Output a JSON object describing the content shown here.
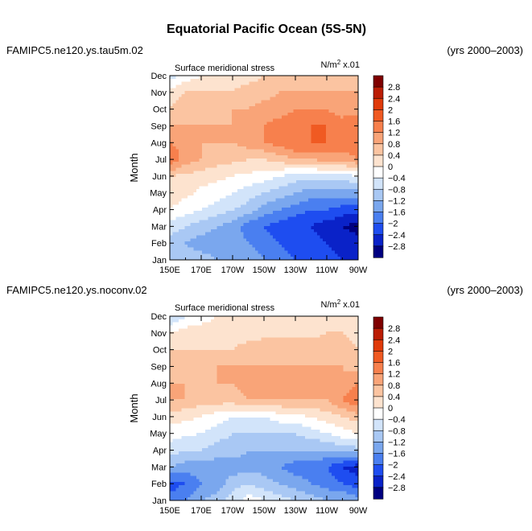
{
  "figure_title": "Equatorial Pacific Ocean (5S-5N)",
  "panels": [
    {
      "case_name": "FAMIPC5.ne120.ys.tau5m.02",
      "years": "(yrs 2000–2003)",
      "left_label": "Surface meridional stress",
      "units_prefix": "N/m",
      "units_sup": "2",
      "units_suffix": " x.01"
    },
    {
      "case_name": "FAMIPC5.ne120.ys.noconv.02",
      "years": "(yrs 2000–2003)",
      "left_label": "Surface meridional stress",
      "units_prefix": "N/m",
      "units_sup": "2",
      "units_suffix": " x.01"
    }
  ],
  "colorbar": {
    "labels": [
      "2.8",
      "2.4",
      "2",
      "1.6",
      "1.2",
      "0.8",
      "0.4",
      "0",
      "−0.4",
      "−0.8",
      "−1.2",
      "−1.6",
      "−2",
      "−2.4",
      "−2.8"
    ],
    "colors": [
      "#7f0000",
      "#bb1d05",
      "#e03a0a",
      "#f05a22",
      "#f7804d",
      "#f9a478",
      "#fbc4a1",
      "#fde3cf",
      "#ffffff",
      "#d2e4fa",
      "#a9c8f4",
      "#7aa7ee",
      "#4a7ff0",
      "#1e4df0",
      "#0a22c8",
      "#000080"
    ]
  },
  "chart_data": [
    {
      "type": "heatmap",
      "subtype": "filled-contour",
      "title": "Surface meridional stress",
      "units": "N/m² x.01",
      "xlabel": "",
      "ylabel": "Month",
      "x": [
        150,
        160,
        170,
        180,
        190,
        200,
        210,
        220,
        230,
        240,
        250,
        260,
        270
      ],
      "x_tick_labels": [
        "150E",
        "170E",
        "170W",
        "150W",
        "130W",
        "110W",
        "90W"
      ],
      "y": [
        "Jan",
        "Feb",
        "Mar",
        "Apr",
        "May",
        "Jun",
        "Jul",
        "Aug",
        "Sep",
        "Oct",
        "Nov",
        "Dec"
      ],
      "levels": [
        -2.8,
        -2.4,
        -2,
        -1.6,
        -1.2,
        -0.8,
        -0.4,
        0,
        0.4,
        0.8,
        1.2,
        1.6,
        2,
        2.4,
        2.8
      ],
      "z": [
        [
          -0.8,
          -1.0,
          -1.0,
          -1.2,
          -1.2,
          -1.4,
          -1.6,
          -1.8,
          -2.0,
          -2.0,
          -2.2,
          -2.4,
          -2.4
        ],
        [
          -1.0,
          -1.2,
          -1.4,
          -1.4,
          -1.4,
          -1.6,
          -1.8,
          -2.0,
          -2.2,
          -2.2,
          -2.4,
          -2.6,
          -2.6
        ],
        [
          -0.6,
          -0.8,
          -1.0,
          -1.2,
          -1.4,
          -1.8,
          -2.0,
          -2.2,
          -2.4,
          -2.4,
          -2.6,
          -2.8,
          -3.0
        ],
        [
          0.0,
          -0.2,
          -0.4,
          -0.6,
          -0.8,
          -1.0,
          -1.4,
          -1.6,
          -1.8,
          -2.0,
          -2.0,
          -2.2,
          -2.2
        ],
        [
          0.2,
          0.1,
          -0.1,
          -0.2,
          -0.4,
          -0.6,
          -0.8,
          -1.0,
          -1.2,
          -1.4,
          -1.4,
          -1.4,
          -1.4
        ],
        [
          0.4,
          0.3,
          0.2,
          0.1,
          0.0,
          -0.1,
          -0.2,
          -0.4,
          -0.6,
          -0.6,
          -0.6,
          -0.6,
          -0.4
        ],
        [
          1.6,
          1.0,
          0.8,
          0.6,
          0.5,
          0.4,
          0.4,
          0.6,
          0.8,
          0.8,
          1.0,
          1.0,
          1.2
        ],
        [
          1.2,
          1.0,
          0.8,
          0.8,
          0.8,
          1.0,
          1.2,
          1.4,
          1.6,
          1.6,
          1.6,
          1.4,
          1.4
        ],
        [
          0.8,
          0.8,
          0.8,
          0.8,
          0.8,
          1.0,
          1.2,
          1.4,
          1.4,
          1.6,
          1.6,
          1.4,
          1.6
        ],
        [
          0.4,
          0.6,
          0.6,
          0.6,
          0.8,
          0.8,
          1.0,
          1.0,
          1.2,
          1.2,
          1.2,
          1.0,
          1.0
        ],
        [
          0.2,
          0.4,
          0.4,
          0.4,
          0.4,
          0.6,
          0.6,
          0.8,
          0.8,
          0.8,
          0.8,
          0.8,
          0.8
        ],
        [
          -0.6,
          -0.2,
          0.0,
          0.2,
          0.2,
          0.2,
          0.4,
          0.4,
          0.4,
          0.6,
          0.6,
          0.6,
          0.4
        ]
      ]
    },
    {
      "type": "heatmap",
      "subtype": "filled-contour",
      "title": "Surface meridional stress",
      "units": "N/m² x.01",
      "xlabel": "",
      "ylabel": "Month",
      "x": [
        150,
        160,
        170,
        180,
        190,
        200,
        210,
        220,
        230,
        240,
        250,
        260,
        270
      ],
      "x_tick_labels": [
        "150E",
        "170E",
        "170W",
        "150W",
        "130W",
        "110W",
        "90W"
      ],
      "y": [
        "Jan",
        "Feb",
        "Mar",
        "Apr",
        "May",
        "Jun",
        "Jul",
        "Aug",
        "Sep",
        "Oct",
        "Nov",
        "Dec"
      ],
      "levels": [
        -2.8,
        -2.4,
        -2,
        -1.6,
        -1.2,
        -0.8,
        -0.4,
        0,
        0.4,
        0.8,
        1.2,
        1.6,
        2,
        2.4,
        2.8
      ],
      "z": [
        [
          -1.8,
          -1.6,
          -1.2,
          -1.0,
          -0.6,
          -0.2,
          -0.4,
          -0.6,
          -0.8,
          -1.0,
          -1.2,
          -1.2,
          -1.4
        ],
        [
          -2.2,
          -2.0,
          -1.6,
          -1.4,
          -1.0,
          -0.8,
          -1.0,
          -1.2,
          -1.4,
          -1.6,
          -1.8,
          -2.0,
          -2.2
        ],
        [
          -1.2,
          -1.4,
          -1.4,
          -1.4,
          -1.4,
          -1.4,
          -1.4,
          -1.6,
          -1.8,
          -1.8,
          -2.0,
          -2.4,
          -2.6
        ],
        [
          -0.6,
          -0.8,
          -0.8,
          -1.0,
          -1.0,
          -1.2,
          -1.2,
          -1.2,
          -1.2,
          -1.2,
          -1.2,
          -1.0,
          -1.0
        ],
        [
          -0.2,
          -0.3,
          -0.4,
          -0.6,
          -0.8,
          -0.8,
          -0.8,
          -0.8,
          -0.8,
          -0.6,
          -0.4,
          -0.2,
          0.0
        ],
        [
          0.2,
          0.1,
          0.0,
          -0.2,
          -0.4,
          -0.4,
          -0.4,
          -0.2,
          -0.1,
          0.0,
          0.2,
          0.4,
          0.6
        ],
        [
          0.8,
          0.8,
          0.6,
          0.6,
          0.6,
          0.8,
          0.8,
          0.8,
          0.8,
          0.8,
          0.8,
          1.2,
          1.6
        ],
        [
          0.8,
          0.8,
          0.8,
          0.8,
          0.8,
          1.0,
          1.0,
          1.0,
          1.0,
          1.0,
          0.8,
          0.8,
          1.2
        ],
        [
          0.6,
          0.6,
          0.6,
          0.8,
          0.8,
          0.8,
          0.8,
          0.8,
          0.8,
          0.8,
          0.8,
          0.8,
          0.6
        ],
        [
          0.4,
          0.4,
          0.4,
          0.4,
          0.4,
          0.6,
          0.6,
          0.6,
          0.6,
          0.6,
          0.6,
          0.6,
          0.4
        ],
        [
          0.0,
          0.2,
          0.2,
          0.2,
          0.2,
          0.2,
          0.3,
          0.3,
          0.3,
          0.3,
          0.4,
          0.4,
          0.2
        ],
        [
          -0.8,
          -0.4,
          -0.2,
          0.0,
          0.0,
          0.1,
          0.1,
          0.2,
          0.2,
          0.2,
          0.2,
          0.2,
          0.0
        ]
      ]
    }
  ]
}
